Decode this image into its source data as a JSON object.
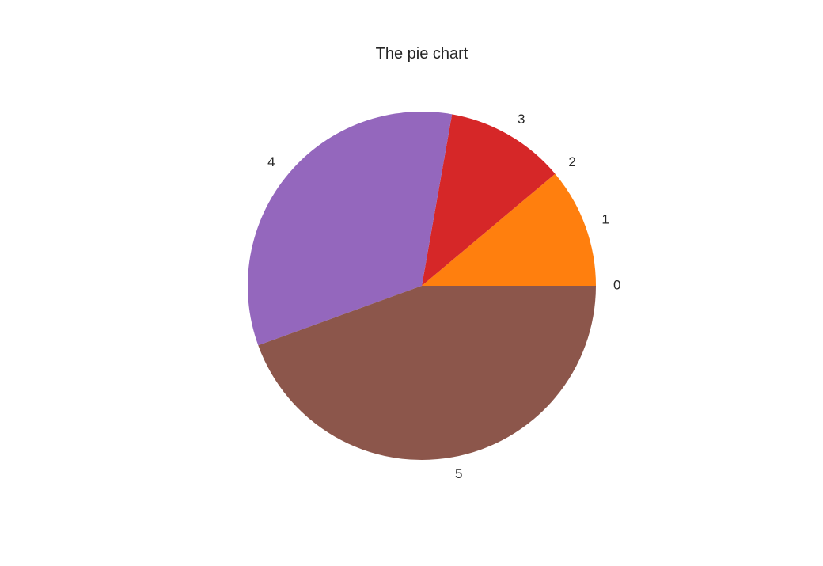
{
  "chart_data": {
    "type": "pie",
    "title": "The pie chart",
    "labels": [
      "0",
      "1",
      "2",
      "3",
      "4",
      "5"
    ],
    "values": [
      0,
      12.5,
      0,
      12.5,
      37.5,
      50
    ],
    "colors": [
      "#1f77b4",
      "#ff7f0e",
      "#2ca02c",
      "#d62728",
      "#9467bd",
      "#8c564b"
    ],
    "start_angle": 0,
    "direction": "counterclockwise"
  }
}
